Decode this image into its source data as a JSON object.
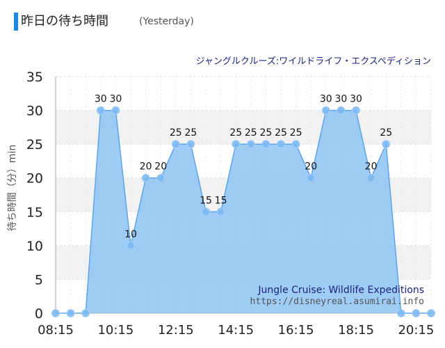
{
  "header": {
    "title": "昨日の待ち時間",
    "subtitle": "(Yesterday)"
  },
  "chart_data": {
    "type": "area",
    "title": "ジャングルクルーズ:ワイルドライフ・エクスペディション",
    "ylabel": "待ち時間（分）min",
    "xlabel": "",
    "x_ticks": [
      "08:15",
      "10:15",
      "12:15",
      "14:15",
      "16:15",
      "18:15",
      "20:15"
    ],
    "ylim": [
      0,
      35
    ],
    "y_ticks": [
      0,
      5,
      10,
      15,
      20,
      25,
      30,
      35
    ],
    "grid": true,
    "series": [
      {
        "values": [
          0,
          0,
          0,
          30,
          30,
          10,
          20,
          20,
          25,
          25,
          15,
          15,
          25,
          25,
          25,
          25,
          25,
          20,
          30,
          30,
          30,
          20,
          25,
          0,
          0,
          0
        ],
        "data_labels": [
          "",
          "",
          "",
          "30",
          "30",
          "10",
          "20",
          "20",
          "25",
          "25",
          "15",
          "15",
          "25",
          "25",
          "25",
          "25",
          "25",
          "20",
          "30",
          "30",
          "30",
          "20",
          "25",
          "",
          "",
          ""
        ]
      }
    ],
    "watermark": {
      "line1": "Jungle Cruise: Wildlife Expeditions",
      "line2": "https://disneyreal.asumirai.info"
    },
    "colors": {
      "fill": "#8ec3f3",
      "line": "#5aa5ec",
      "point": "#7cb8f2",
      "title": "#1a237e"
    }
  }
}
